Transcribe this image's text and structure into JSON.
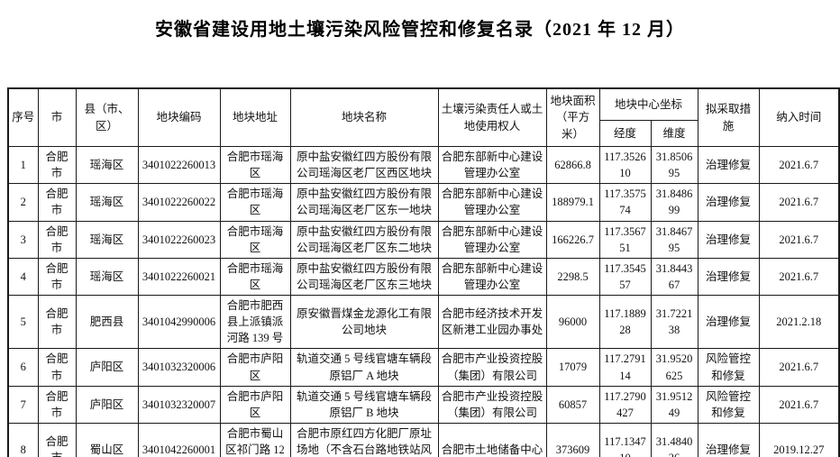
{
  "page": {
    "title": "安徽省建设用地土壤污染风险管控和修复名录（2021 年 12 月）"
  },
  "table": {
    "headers": {
      "seq": "序号",
      "city": "市",
      "county": "县（市、区）",
      "code": "地块编码",
      "address": "地块地址",
      "name": "地块名称",
      "responsible": "土壤污染责任人或土地使用权人",
      "area": "地块面积（平方米）",
      "center_coords": "地块中心坐标",
      "longitude": "经度",
      "latitude": "维度",
      "measures": "拟采取措施",
      "time": "纳入时间"
    },
    "rows": [
      {
        "seq": "1",
        "city": "合肥市",
        "county": "瑶海区",
        "code": "3401022260013",
        "address": "合肥市瑶海区",
        "name": "原中盐安徽红四方股份有限公司瑶海区老厂区西区地块",
        "responsible": "合肥东部新中心建设管理办公室",
        "area": "62866.8",
        "longitude": "117.352610",
        "latitude": "31.850695",
        "measures": "治理修复",
        "time": "2021.6.7"
      },
      {
        "seq": "2",
        "city": "合肥市",
        "county": "瑶海区",
        "code": "3401022260022",
        "address": "合肥市瑶海区",
        "name": "原中盐安徽红四方股份有限公司瑶海区老厂区东一地块",
        "responsible": "合肥东部新中心建设管理办公室",
        "area": "188979.1",
        "longitude": "117.357574",
        "latitude": "31.848699",
        "measures": "治理修复",
        "time": "2021.6.7"
      },
      {
        "seq": "3",
        "city": "合肥市",
        "county": "瑶海区",
        "code": "3401022260023",
        "address": "合肥市瑶海区",
        "name": "原中盐安徽红四方股份有限公司瑶海区老厂区东二地块",
        "responsible": "合肥东部新中心建设管理办公室",
        "area": "166226.7",
        "longitude": "117.356751",
        "latitude": "31.846795",
        "measures": "治理修复",
        "time": "2021.6.7"
      },
      {
        "seq": "4",
        "city": "合肥市",
        "county": "瑶海区",
        "code": "3401022260021",
        "address": "合肥市瑶海区",
        "name": "原中盐安徽红四方股份有限公司瑶海区老厂区东三地块",
        "responsible": "合肥东部新中心建设管理办公室",
        "area": "2298.5",
        "longitude": "117.354557",
        "latitude": "31.844367",
        "measures": "治理修复",
        "time": "2021.6.7"
      },
      {
        "seq": "5",
        "city": "合肥市",
        "county": "肥西县",
        "code": "3401042990006",
        "address": "合肥市肥西县上派镇派河路 139 号",
        "name": "原安徽晋煤金龙源化工有限公司地块",
        "responsible": "合肥市经济技术开发区新港工业园办事处",
        "area": "96000",
        "longitude": "117.188928",
        "latitude": "31.722138",
        "measures": "治理修复",
        "time": "2021.2.18"
      },
      {
        "seq": "6",
        "city": "合肥市",
        "county": "庐阳区",
        "code": "3401032320006",
        "address": "合肥市庐阳区",
        "name": "轨道交通 5 号线官塘车辆段原铝厂 A 地块",
        "responsible": "合肥市产业投资控股（集团）有限公司",
        "area": "17079",
        "longitude": "117.279114",
        "latitude": "31.9520625",
        "measures": "风险管控和修复",
        "time": "2021.6.7"
      },
      {
        "seq": "7",
        "city": "合肥市",
        "county": "庐阳区",
        "code": "3401032320007",
        "address": "合肥市庐阳区",
        "name": "轨道交通 5 号线官塘车辆段原铝厂 B 地块",
        "responsible": "合肥市产业投资控股（集团）有限公司",
        "area": "60857",
        "longitude": "117.2790427",
        "latitude": "31.951249",
        "measures": "风险管控和修复",
        "time": "2021.6.7"
      },
      {
        "seq": "8",
        "city": "合肥市",
        "county": "蜀山区",
        "code": "3401042260001",
        "address": "合肥市蜀山区祁门路 12 号",
        "name": "合肥市原红四方化肥厂原址场地（不含石台路地铁站风亭建设",
        "responsible": "合肥市土地储备中心",
        "area": "373609",
        "longitude": "117.134710",
        "latitude": "31.484026",
        "measures": "治理修复",
        "time": "2019.12.27"
      }
    ]
  }
}
